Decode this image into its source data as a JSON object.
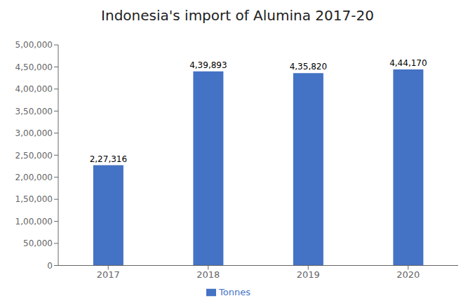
{
  "chart_data": {
    "type": "bar",
    "title": "Indonesia's import of Alumina 2017-20",
    "categories": [
      "2017",
      "2018",
      "2019",
      "2020"
    ],
    "series": [
      {
        "name": "Tonnes",
        "color": "#4472C4",
        "values": [
          227316,
          439893,
          435820,
          444170
        ],
        "value_labels": [
          "2,27,316",
          "4,39,893",
          "4,35,820",
          "4,44,170"
        ]
      }
    ],
    "ylim": [
      0,
      500000
    ],
    "yticks": [
      0,
      {
        "value": 50000,
        "label": "50,000"
      },
      {
        "value": 100000,
        "label": "1,00,000"
      },
      {
        "value": 150000,
        "label": "1,50,000"
      },
      {
        "value": 200000,
        "label": "2,00,000"
      },
      {
        "value": 250000,
        "label": "2,50,000"
      },
      {
        "value": 300000,
        "label": "3,00,000"
      },
      {
        "value": 350000,
        "label": "3,50,000"
      },
      {
        "value": 400000,
        "label": "4,00,000"
      },
      {
        "value": 450000,
        "label": "4,50,000"
      },
      {
        "value": 500000,
        "label": "5,00,000"
      }
    ],
    "grid": false,
    "legend": "bottom"
  }
}
